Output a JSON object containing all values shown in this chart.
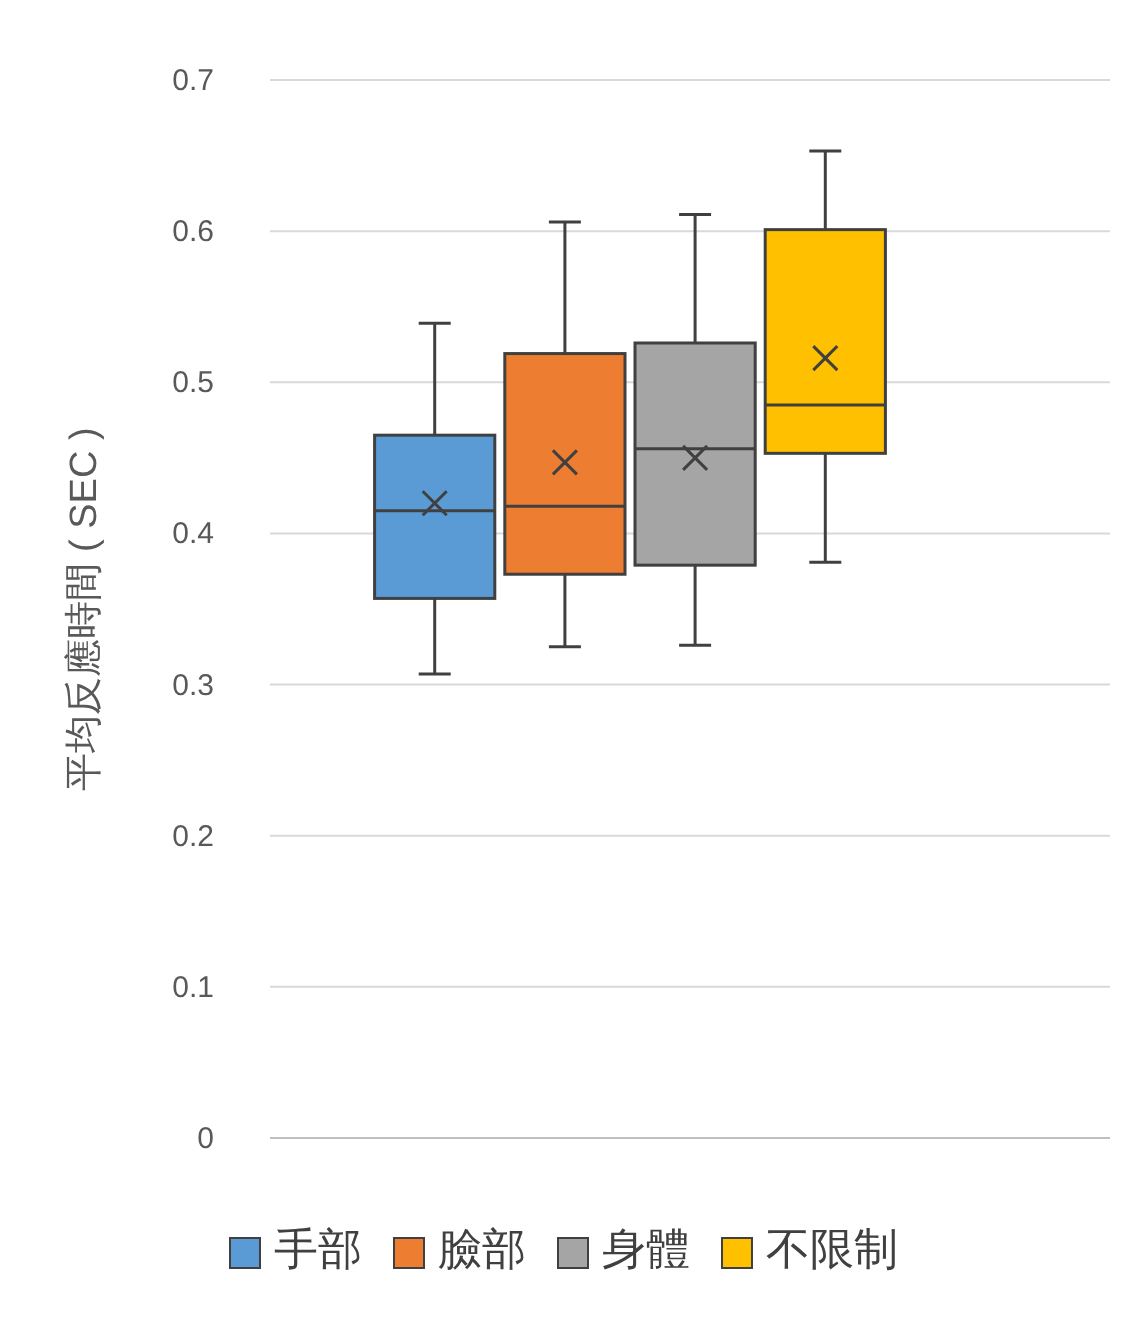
{
  "chart_data": {
    "type": "box",
    "ylabel": "平均反應時間 ( SEC )",
    "categories": [
      null
    ],
    "ylim": [
      0,
      0.7
    ],
    "yticks": [
      0,
      0.1,
      0.2,
      0.3,
      0.4,
      0.5,
      0.6,
      0.7
    ],
    "grid": "y",
    "legend": "bottom",
    "series": [
      {
        "name": "手部",
        "color": "#5b9bd5",
        "boxes": [
          {
            "low": 0.307,
            "q1": 0.357,
            "median": 0.415,
            "q3": 0.465,
            "high": 0.539,
            "mean": 0.42
          }
        ]
      },
      {
        "name": "臉部",
        "color": "#ed7d31",
        "boxes": [
          {
            "low": 0.325,
            "q1": 0.373,
            "median": 0.418,
            "q3": 0.519,
            "high": 0.606,
            "mean": 0.447
          }
        ]
      },
      {
        "name": "身體",
        "color": "#a5a5a5",
        "boxes": [
          {
            "low": 0.326,
            "q1": 0.379,
            "median": 0.456,
            "q3": 0.526,
            "high": 0.611,
            "mean": 0.45
          }
        ]
      },
      {
        "name": "不限制",
        "color": "#ffc000",
        "boxes": [
          {
            "low": 0.381,
            "q1": 0.453,
            "median": 0.485,
            "q3": 0.601,
            "high": 0.653,
            "mean": 0.516
          }
        ]
      }
    ]
  }
}
